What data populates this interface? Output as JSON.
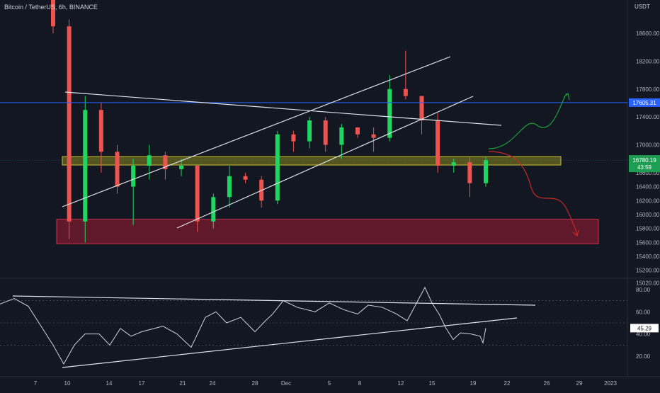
{
  "header": {
    "title": "Bitcoin / TetherUS, 6h, BINANCE",
    "unit": "USDT"
  },
  "colors": {
    "up": "#26a69a",
    "up_bright": "#1ed760",
    "down": "#ef5350",
    "blue_line": "#2962ff",
    "yellow_zone": "#9e9a2e",
    "red_zone": "#a3243a",
    "rsi": "#d1d4dc",
    "bg": "#131722"
  },
  "price_axis": {
    "ticks": [
      "18600.00",
      "18200.00",
      "17800.00",
      "17400.00",
      "17000.00",
      "16600.00",
      "16400.00",
      "16200.00",
      "16000.00",
      "15800.00",
      "15600.00",
      "15400.00",
      "15200.00",
      "15020.00"
    ],
    "label_blue": "17605.31",
    "label_current": "16780.19",
    "label_countdown": "43:59"
  },
  "rsi_axis": {
    "ticks": [
      "80.00",
      "60.00",
      "40.00",
      "20.00"
    ],
    "label_current": "45.29"
  },
  "time_axis": {
    "ticks": [
      "7",
      "10",
      "14",
      "17",
      "21",
      "24",
      "28",
      "Dec",
      "5",
      "8",
      "12",
      "15",
      "19",
      "22",
      "26",
      "29",
      "2023"
    ]
  },
  "chart_data": {
    "type": "candlestick",
    "title": "Bitcoin / TetherUS, 6h, BINANCE",
    "ylim": [
      15020,
      18800
    ],
    "levels": {
      "blue_horizontal": 17605.31,
      "current_price": 16780.19
    },
    "zones": [
      {
        "name": "yellow",
        "from": 16710,
        "to": 16830
      },
      {
        "name": "red",
        "from": 15580,
        "to": 15930
      }
    ],
    "candles": [
      {
        "x": "2022-11-08",
        "o": 19400,
        "h": 19600,
        "l": 18600,
        "c": 18700
      },
      {
        "x": "2022-11-09",
        "o": 18700,
        "h": 18800,
        "l": 15650,
        "c": 15900
      },
      {
        "x": "2022-11-10",
        "o": 15900,
        "h": 17700,
        "l": 15600,
        "c": 17500
      },
      {
        "x": "2022-11-11",
        "o": 17500,
        "h": 17600,
        "l": 16600,
        "c": 16900
      },
      {
        "x": "2022-11-13",
        "o": 16900,
        "h": 17000,
        "l": 16300,
        "c": 16400
      },
      {
        "x": "2022-11-14",
        "o": 16400,
        "h": 16800,
        "l": 15850,
        "c": 16700
      },
      {
        "x": "2022-11-15",
        "o": 16700,
        "h": 17000,
        "l": 16500,
        "c": 16850
      },
      {
        "x": "2022-11-17",
        "o": 16850,
        "h": 16900,
        "l": 16500,
        "c": 16650
      },
      {
        "x": "2022-11-19",
        "o": 16650,
        "h": 16800,
        "l": 16550,
        "c": 16700
      },
      {
        "x": "2022-11-21",
        "o": 16700,
        "h": 16700,
        "l": 15750,
        "c": 15900
      },
      {
        "x": "2022-11-22",
        "o": 15900,
        "h": 16300,
        "l": 15800,
        "c": 16250
      },
      {
        "x": "2022-11-24",
        "o": 16250,
        "h": 16700,
        "l": 16100,
        "c": 16550
      },
      {
        "x": "2022-11-26",
        "o": 16550,
        "h": 16600,
        "l": 16450,
        "c": 16500
      },
      {
        "x": "2022-11-28",
        "o": 16500,
        "h": 16550,
        "l": 16100,
        "c": 16200
      },
      {
        "x": "2022-11-30",
        "o": 16200,
        "h": 17200,
        "l": 16150,
        "c": 17150
      },
      {
        "x": "2022-12-02",
        "o": 17150,
        "h": 17200,
        "l": 16900,
        "c": 17050
      },
      {
        "x": "2022-12-04",
        "o": 17050,
        "h": 17400,
        "l": 16950,
        "c": 17350
      },
      {
        "x": "2022-12-06",
        "o": 17350,
        "h": 17400,
        "l": 16900,
        "c": 17000
      },
      {
        "x": "2022-12-08",
        "o": 17000,
        "h": 17300,
        "l": 16800,
        "c": 17250
      },
      {
        "x": "2022-12-10",
        "o": 17250,
        "h": 17250,
        "l": 17100,
        "c": 17150
      },
      {
        "x": "2022-12-12",
        "o": 17150,
        "h": 17250,
        "l": 16900,
        "c": 17100
      },
      {
        "x": "2022-12-13",
        "o": 17100,
        "h": 18000,
        "l": 17050,
        "c": 17800
      },
      {
        "x": "2022-12-14",
        "o": 17800,
        "h": 18350,
        "l": 17650,
        "c": 17700
      },
      {
        "x": "2022-12-15",
        "o": 17700,
        "h": 17700,
        "l": 17150,
        "c": 17350
      },
      {
        "x": "2022-12-16",
        "o": 17350,
        "h": 17450,
        "l": 16600,
        "c": 16700
      },
      {
        "x": "2022-12-18",
        "o": 16700,
        "h": 16800,
        "l": 16600,
        "c": 16750
      },
      {
        "x": "2022-12-19",
        "o": 16750,
        "h": 16820,
        "l": 16250,
        "c": 16450
      },
      {
        "x": "2022-12-20",
        "o": 16450,
        "h": 16830,
        "l": 16400,
        "c": 16780.19
      }
    ],
    "rsi": {
      "current": 45.29,
      "ylim": [
        10,
        88
      ],
      "points": [
        [
          0,
          67
        ],
        [
          20,
          72
        ],
        [
          40,
          65
        ],
        [
          60,
          45
        ],
        [
          75,
          30
        ],
        [
          90,
          13
        ],
        [
          105,
          30
        ],
        [
          120,
          40
        ],
        [
          140,
          40
        ],
        [
          155,
          30
        ],
        [
          170,
          45
        ],
        [
          185,
          38
        ],
        [
          200,
          42
        ],
        [
          230,
          47
        ],
        [
          250,
          40
        ],
        [
          270,
          28
        ],
        [
          290,
          55
        ],
        [
          305,
          60
        ],
        [
          320,
          50
        ],
        [
          340,
          55
        ],
        [
          360,
          42
        ],
        [
          375,
          52
        ],
        [
          385,
          58
        ],
        [
          400,
          70
        ],
        [
          420,
          64
        ],
        [
          445,
          60
        ],
        [
          465,
          68
        ],
        [
          485,
          62
        ],
        [
          505,
          58
        ],
        [
          520,
          66
        ],
        [
          540,
          64
        ],
        [
          560,
          58
        ],
        [
          575,
          52
        ],
        [
          590,
          70
        ],
        [
          600,
          82
        ],
        [
          610,
          68
        ],
        [
          620,
          58
        ],
        [
          630,
          45
        ],
        [
          640,
          35
        ],
        [
          650,
          41
        ],
        [
          665,
          40
        ],
        [
          678,
          38
        ],
        [
          682,
          32
        ],
        [
          686,
          45.29
        ]
      ]
    }
  }
}
